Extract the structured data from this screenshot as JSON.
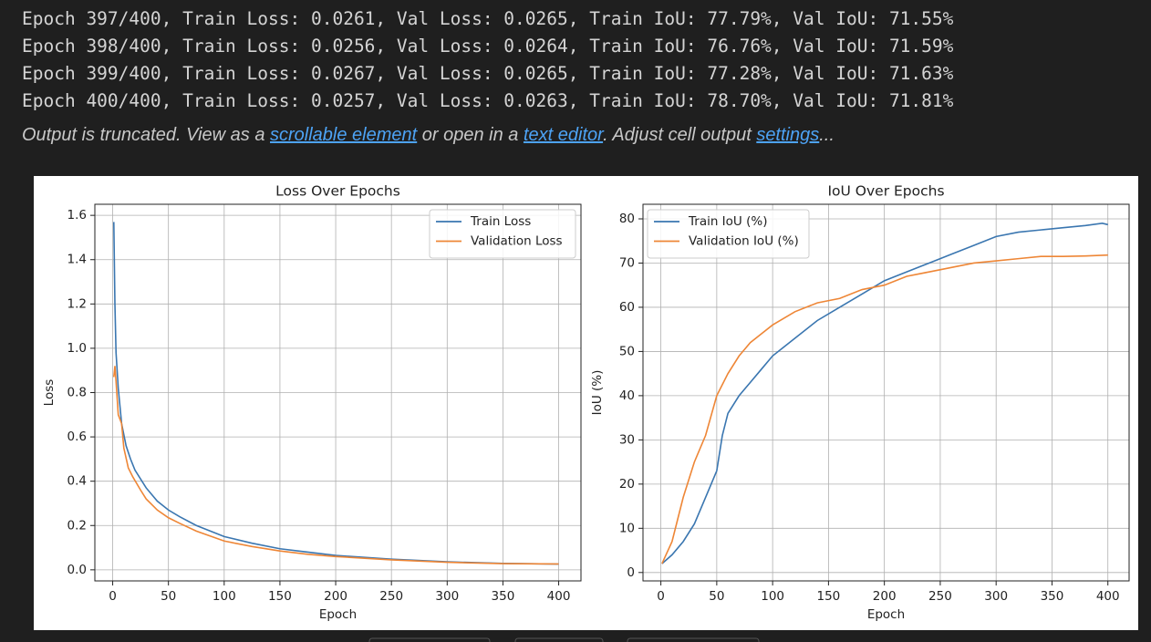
{
  "output_lines": [
    "Epoch 397/400, Train Loss: 0.0261, Val Loss: 0.0265, Train IoU: 77.79%, Val IoU: 71.55%",
    "Epoch 398/400, Train Loss: 0.0256, Val Loss: 0.0264, Train IoU: 76.76%, Val IoU: 71.59%",
    "Epoch 399/400, Train Loss: 0.0267, Val Loss: 0.0265, Train IoU: 77.28%, Val IoU: 71.63%",
    "Epoch 400/400, Train Loss: 0.0257, Val Loss: 0.0263, Train IoU: 78.70%, Val IoU: 71.81%"
  ],
  "truncation_note": [
    "Output is truncated. View as a ",
    "scrollable element",
    " or open in a ",
    "text editor",
    ". Adjust cell output ",
    "settings",
    "..."
  ],
  "chart_data": [
    {
      "type": "line",
      "title": "Loss Over Epochs",
      "xlabel": "Epoch",
      "ylabel": "Loss",
      "xlim": [
        -16,
        420
      ],
      "ylim": [
        -0.05,
        1.65
      ],
      "xticks": [
        0,
        50,
        100,
        150,
        200,
        250,
        300,
        350,
        400
      ],
      "yticks": [
        {
          "value": 0,
          "label": "0.0"
        },
        0.2,
        0.4,
        0.6,
        0.8,
        {
          "value": 1,
          "label": "1.0"
        },
        1.2,
        1.4,
        1.6
      ],
      "grid": true,
      "legend": "upper right",
      "series": [
        {
          "name": "Train Loss",
          "color": "#3a76b0",
          "x": [
            1,
            2,
            3,
            5,
            8,
            12,
            16,
            20,
            30,
            40,
            50,
            60,
            75,
            100,
            125,
            150,
            175,
            200,
            250,
            300,
            350,
            400
          ],
          "values": [
            1.57,
            1.2,
            0.98,
            0.82,
            0.66,
            0.56,
            0.5,
            0.45,
            0.37,
            0.31,
            0.27,
            0.24,
            0.2,
            0.15,
            0.12,
            0.095,
            0.08,
            0.065,
            0.048,
            0.036,
            0.029,
            0.0257
          ]
        },
        {
          "name": "Validation Loss",
          "color": "#ee8636",
          "x": [
            1,
            2,
            3,
            5,
            8,
            10,
            14,
            18,
            25,
            30,
            40,
            50,
            60,
            75,
            100,
            125,
            150,
            175,
            200,
            250,
            300,
            350,
            400
          ],
          "values": [
            0.87,
            0.92,
            0.85,
            0.7,
            0.66,
            0.55,
            0.46,
            0.42,
            0.36,
            0.32,
            0.27,
            0.235,
            0.21,
            0.175,
            0.13,
            0.105,
            0.085,
            0.07,
            0.06,
            0.045,
            0.034,
            0.028,
            0.0263
          ]
        }
      ]
    },
    {
      "type": "line",
      "title": "IoU Over Epochs",
      "xlabel": "Epoch",
      "ylabel": "IoU (%)",
      "xlim": [
        -16,
        419
      ],
      "ylim": [
        -1.9,
        83.3
      ],
      "xticks": [
        0,
        50,
        100,
        150,
        200,
        250,
        300,
        350,
        400
      ],
      "yticks": [
        0,
        10,
        20,
        30,
        40,
        50,
        60,
        70,
        80
      ],
      "grid": true,
      "legend": "upper left",
      "series": [
        {
          "name": "Train IoU (%)",
          "color": "#3a76b0",
          "x": [
            1,
            10,
            20,
            30,
            40,
            50,
            55,
            60,
            70,
            80,
            90,
            100,
            120,
            140,
            160,
            180,
            200,
            220,
            240,
            260,
            280,
            300,
            320,
            340,
            360,
            380,
            395,
            400
          ],
          "values": [
            2,
            4,
            7,
            11,
            17,
            23,
            31,
            36,
            40,
            43,
            46,
            49,
            53,
            57,
            60,
            63,
            66,
            68,
            70,
            72,
            74,
            76,
            77,
            77.5,
            78,
            78.5,
            79,
            78.7
          ]
        },
        {
          "name": "Validation IoU (%)",
          "color": "#ee8636",
          "x": [
            1,
            10,
            15,
            20,
            30,
            40,
            50,
            60,
            70,
            80,
            90,
            100,
            120,
            140,
            160,
            180,
            200,
            220,
            240,
            260,
            280,
            300,
            320,
            340,
            360,
            380,
            400
          ],
          "values": [
            2,
            7,
            12,
            17,
            25,
            31,
            40,
            45,
            49,
            52,
            54,
            56,
            59,
            61,
            62,
            64,
            65,
            67,
            68,
            69,
            70,
            70.5,
            71,
            71.5,
            71.5,
            71.6,
            71.81
          ]
        }
      ]
    }
  ]
}
